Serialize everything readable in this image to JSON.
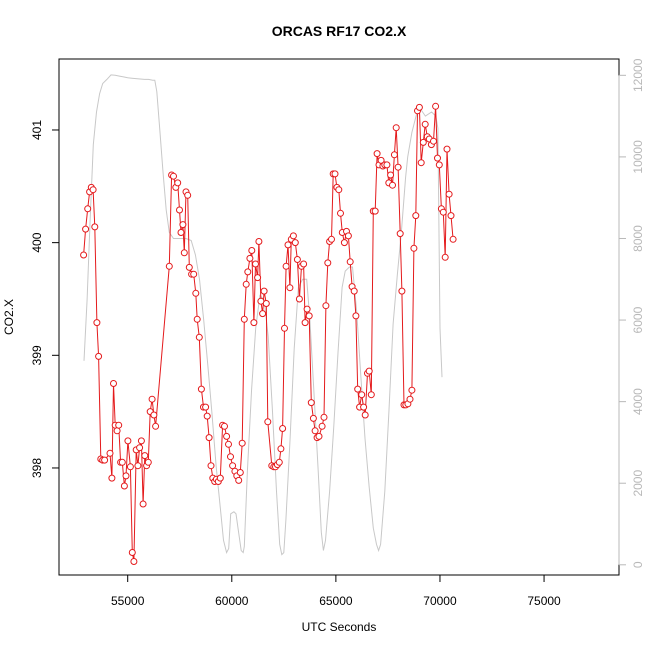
{
  "chart_data": {
    "type": "line",
    "title": "ORCAS RF17 CO2.X",
    "xlabel": "UTC Seconds",
    "ylabel": "CO2.X",
    "xlim": [
      51700,
      78600
    ],
    "ylim": [
      397.05,
      401.63
    ],
    "xticks": [
      55000,
      60000,
      65000,
      70000,
      75000
    ],
    "xtick_labels": [
      "55000",
      "60000",
      "65000",
      "70000",
      "75000"
    ],
    "yticks": [
      398,
      399,
      400,
      401
    ],
    "ytick_labels": [
      "398",
      "399",
      "400",
      "401"
    ],
    "y2lim": [
      -250,
      12400
    ],
    "y2ticks": [
      0,
      2000,
      4000,
      6000,
      8000,
      10000,
      12000
    ],
    "y2tick_labels": [
      "0",
      "2000",
      "4000",
      "6000",
      "8000",
      "10000",
      "12000"
    ],
    "colors": {
      "co2": "#e41a1c",
      "altitude": "#c8c8c8",
      "right_axis": "#b8b8b8"
    },
    "series": [
      {
        "axis": "left",
        "style": "line+circles",
        "points": [
          [
            52880,
            399.89
          ],
          [
            52980,
            400.12
          ],
          [
            53080,
            400.3
          ],
          [
            53170,
            400.45
          ],
          [
            53250,
            400.49
          ],
          [
            53340,
            400.47
          ],
          [
            53420,
            400.14
          ],
          [
            53520,
            399.29
          ],
          [
            53600,
            398.99
          ],
          [
            53710,
            398.08
          ],
          [
            53800,
            398.07
          ],
          [
            53890,
            398.07
          ],
          [
            54150,
            398.13
          ],
          [
            54240,
            397.91
          ],
          [
            54320,
            398.75
          ],
          [
            54400,
            398.38
          ],
          [
            54490,
            398.33
          ],
          [
            54570,
            398.38
          ],
          [
            54660,
            398.05
          ],
          [
            54740,
            398.05
          ],
          [
            54840,
            397.84
          ],
          [
            54920,
            397.93
          ],
          [
            55010,
            398.24
          ],
          [
            55130,
            398.01
          ],
          [
            55220,
            397.25
          ],
          [
            55300,
            397.17
          ],
          [
            55410,
            398.16
          ],
          [
            55490,
            398.02
          ],
          [
            55570,
            398.18
          ],
          [
            55660,
            398.24
          ],
          [
            55740,
            397.68
          ],
          [
            55820,
            398.11
          ],
          [
            55910,
            398.02
          ],
          [
            55990,
            398.05
          ],
          [
            56080,
            398.5
          ],
          [
            56170,
            398.61
          ],
          [
            56260,
            398.47
          ],
          [
            56340,
            398.37
          ],
          [
            57000,
            399.79
          ],
          [
            57110,
            400.6
          ],
          [
            57200,
            400.59
          ],
          [
            57310,
            400.49
          ],
          [
            57400,
            400.53
          ],
          [
            57490,
            400.29
          ],
          [
            57560,
            400.09
          ],
          [
            57650,
            400.16
          ],
          [
            57720,
            399.91
          ],
          [
            57800,
            400.45
          ],
          [
            57880,
            400.42
          ],
          [
            57960,
            399.78
          ],
          [
            58070,
            399.72
          ],
          [
            58170,
            399.72
          ],
          [
            58270,
            399.55
          ],
          [
            58340,
            399.32
          ],
          [
            58440,
            399.16
          ],
          [
            58540,
            398.7
          ],
          [
            58640,
            398.54
          ],
          [
            58740,
            398.54
          ],
          [
            58820,
            398.46
          ],
          [
            58910,
            398.27
          ],
          [
            59000,
            398.02
          ],
          [
            59090,
            397.91
          ],
          [
            59180,
            397.88
          ],
          [
            59260,
            397.9
          ],
          [
            59350,
            397.88
          ],
          [
            59450,
            397.91
          ],
          [
            59560,
            398.38
          ],
          [
            59650,
            398.37
          ],
          [
            59750,
            398.28
          ],
          [
            59840,
            398.21
          ],
          [
            59940,
            398.1
          ],
          [
            60040,
            398.02
          ],
          [
            60150,
            397.97
          ],
          [
            60240,
            397.93
          ],
          [
            60330,
            397.89
          ],
          [
            60410,
            397.96
          ],
          [
            60500,
            398.22
          ],
          [
            60600,
            399.32
          ],
          [
            60690,
            399.63
          ],
          [
            60770,
            399.74
          ],
          [
            60870,
            399.86
          ],
          [
            60960,
            399.93
          ],
          [
            61060,
            399.29
          ],
          [
            61140,
            399.81
          ],
          [
            61240,
            399.69
          ],
          [
            61300,
            400.01
          ],
          [
            61400,
            399.48
          ],
          [
            61480,
            399.37
          ],
          [
            61550,
            399.57
          ],
          [
            61660,
            399.46
          ],
          [
            61730,
            398.41
          ],
          [
            61920,
            398.02
          ],
          [
            62020,
            398.01
          ],
          [
            62100,
            398.01
          ],
          [
            62190,
            398.03
          ],
          [
            62280,
            398.05
          ],
          [
            62360,
            398.17
          ],
          [
            62440,
            398.35
          ],
          [
            62530,
            399.24
          ],
          [
            62610,
            399.79
          ],
          [
            62700,
            399.98
          ],
          [
            62790,
            399.6
          ],
          [
            62860,
            400.03
          ],
          [
            62960,
            400.06
          ],
          [
            63050,
            400.0
          ],
          [
            63150,
            399.85
          ],
          [
            63250,
            399.5
          ],
          [
            63350,
            399.79
          ],
          [
            63450,
            399.81
          ],
          [
            63520,
            399.29
          ],
          [
            63620,
            399.41
          ],
          [
            63720,
            399.35
          ],
          [
            63820,
            398.58
          ],
          [
            63920,
            398.44
          ],
          [
            64000,
            398.33
          ],
          [
            64100,
            398.27
          ],
          [
            64190,
            398.28
          ],
          [
            64340,
            398.37
          ],
          [
            64430,
            398.45
          ],
          [
            64520,
            399.44
          ],
          [
            64610,
            399.82
          ],
          [
            64700,
            400.01
          ],
          [
            64790,
            400.03
          ],
          [
            64870,
            400.61
          ],
          [
            64960,
            400.61
          ],
          [
            65050,
            400.49
          ],
          [
            65140,
            400.47
          ],
          [
            65220,
            400.26
          ],
          [
            65310,
            400.09
          ],
          [
            65410,
            400.0
          ],
          [
            65510,
            400.1
          ],
          [
            65600,
            400.06
          ],
          [
            65690,
            399.83
          ],
          [
            65780,
            399.61
          ],
          [
            65880,
            399.57
          ],
          [
            65960,
            399.35
          ],
          [
            66050,
            398.7
          ],
          [
            66140,
            398.54
          ],
          [
            66240,
            398.65
          ],
          [
            66330,
            398.54
          ],
          [
            66410,
            398.47
          ],
          [
            66520,
            398.84
          ],
          [
            66600,
            398.86
          ],
          [
            66700,
            398.65
          ],
          [
            66800,
            400.28
          ],
          [
            66890,
            400.28
          ],
          [
            66980,
            400.79
          ],
          [
            67070,
            400.69
          ],
          [
            67170,
            400.73
          ],
          [
            67260,
            400.68
          ],
          [
            67350,
            400.69
          ],
          [
            67450,
            400.69
          ],
          [
            67540,
            400.53
          ],
          [
            67630,
            400.6
          ],
          [
            67720,
            400.51
          ],
          [
            67810,
            400.78
          ],
          [
            67900,
            401.02
          ],
          [
            67990,
            400.67
          ],
          [
            68090,
            400.08
          ],
          [
            68170,
            399.57
          ],
          [
            68270,
            398.56
          ],
          [
            68360,
            398.56
          ],
          [
            68460,
            398.57
          ],
          [
            68560,
            398.61
          ],
          [
            68650,
            398.69
          ],
          [
            68750,
            399.95
          ],
          [
            68840,
            400.24
          ],
          [
            68920,
            401.17
          ],
          [
            69010,
            401.2
          ],
          [
            69100,
            400.71
          ],
          [
            69200,
            400.89
          ],
          [
            69290,
            401.05
          ],
          [
            69390,
            400.94
          ],
          [
            69490,
            400.92
          ],
          [
            69590,
            400.87
          ],
          [
            69690,
            400.9
          ],
          [
            69790,
            401.21
          ],
          [
            69880,
            400.75
          ],
          [
            69970,
            400.69
          ],
          [
            70070,
            400.3
          ],
          [
            70160,
            400.27
          ],
          [
            70250,
            399.87
          ],
          [
            70340,
            400.83
          ],
          [
            70440,
            400.43
          ],
          [
            70530,
            400.24
          ],
          [
            70630,
            400.03
          ]
        ]
      },
      {
        "axis": "right",
        "style": "line",
        "points": [
          [
            52900,
            5000
          ],
          [
            53050,
            6500
          ],
          [
            53200,
            8500
          ],
          [
            53350,
            10300
          ],
          [
            53500,
            11100
          ],
          [
            53650,
            11550
          ],
          [
            53800,
            11800
          ],
          [
            54000,
            11900
          ],
          [
            54200,
            12010
          ],
          [
            54400,
            12000
          ],
          [
            54600,
            11980
          ],
          [
            54800,
            11960
          ],
          [
            55000,
            11940
          ],
          [
            55200,
            11930
          ],
          [
            55400,
            11920
          ],
          [
            55600,
            11910
          ],
          [
            55800,
            11900
          ],
          [
            56000,
            11900
          ],
          [
            56200,
            11880
          ],
          [
            56300,
            11880
          ],
          [
            56400,
            11600
          ],
          [
            56550,
            10600
          ],
          [
            56700,
            9600
          ],
          [
            56850,
            8700
          ],
          [
            57000,
            8150
          ],
          [
            57200,
            8000
          ],
          [
            57500,
            8000
          ],
          [
            57800,
            8000
          ],
          [
            58050,
            7950
          ],
          [
            58250,
            7600
          ],
          [
            58450,
            7000
          ],
          [
            58650,
            6000
          ],
          [
            58850,
            4900
          ],
          [
            59050,
            3700
          ],
          [
            59250,
            2400
          ],
          [
            59450,
            1400
          ],
          [
            59600,
            600
          ],
          [
            59750,
            300
          ],
          [
            59850,
            400
          ],
          [
            59950,
            1250
          ],
          [
            60100,
            1300
          ],
          [
            60200,
            1250
          ],
          [
            60300,
            900
          ],
          [
            60450,
            350
          ],
          [
            60550,
            300
          ],
          [
            60600,
            450
          ],
          [
            60750,
            2300
          ],
          [
            60950,
            4300
          ],
          [
            61150,
            5800
          ],
          [
            61350,
            6600
          ],
          [
            61550,
            6500
          ],
          [
            61750,
            5600
          ],
          [
            61950,
            3800
          ],
          [
            62150,
            1800
          ],
          [
            62300,
            500
          ],
          [
            62400,
            250
          ],
          [
            62500,
            300
          ],
          [
            62600,
            1100
          ],
          [
            62800,
            3100
          ],
          [
            63000,
            5300
          ],
          [
            63200,
            6800
          ],
          [
            63400,
            7000
          ],
          [
            63600,
            7000
          ],
          [
            63750,
            6000
          ],
          [
            63950,
            4200
          ],
          [
            64150,
            2300
          ],
          [
            64300,
            800
          ],
          [
            64400,
            350
          ],
          [
            64500,
            600
          ],
          [
            64700,
            1800
          ],
          [
            64900,
            3400
          ],
          [
            65100,
            5200
          ],
          [
            65300,
            6800
          ],
          [
            65450,
            7200
          ],
          [
            65650,
            7300
          ],
          [
            65800,
            7300
          ],
          [
            66000,
            6200
          ],
          [
            66200,
            4600
          ],
          [
            66400,
            3100
          ],
          [
            66600,
            1900
          ],
          [
            66800,
            900
          ],
          [
            66950,
            500
          ],
          [
            67050,
            350
          ],
          [
            67150,
            500
          ],
          [
            67350,
            1800
          ],
          [
            67550,
            3800
          ],
          [
            67750,
            5900
          ],
          [
            67950,
            7100
          ],
          [
            68150,
            8200
          ],
          [
            68350,
            9500
          ],
          [
            68450,
            10000
          ],
          [
            68650,
            10600
          ],
          [
            68900,
            11100
          ],
          [
            69100,
            11150
          ],
          [
            69300,
            11000
          ],
          [
            69600,
            11100
          ],
          [
            69800,
            11000
          ],
          [
            69900,
            10700
          ],
          [
            70000,
            5800
          ],
          [
            70100,
            4600
          ]
        ]
      }
    ]
  }
}
